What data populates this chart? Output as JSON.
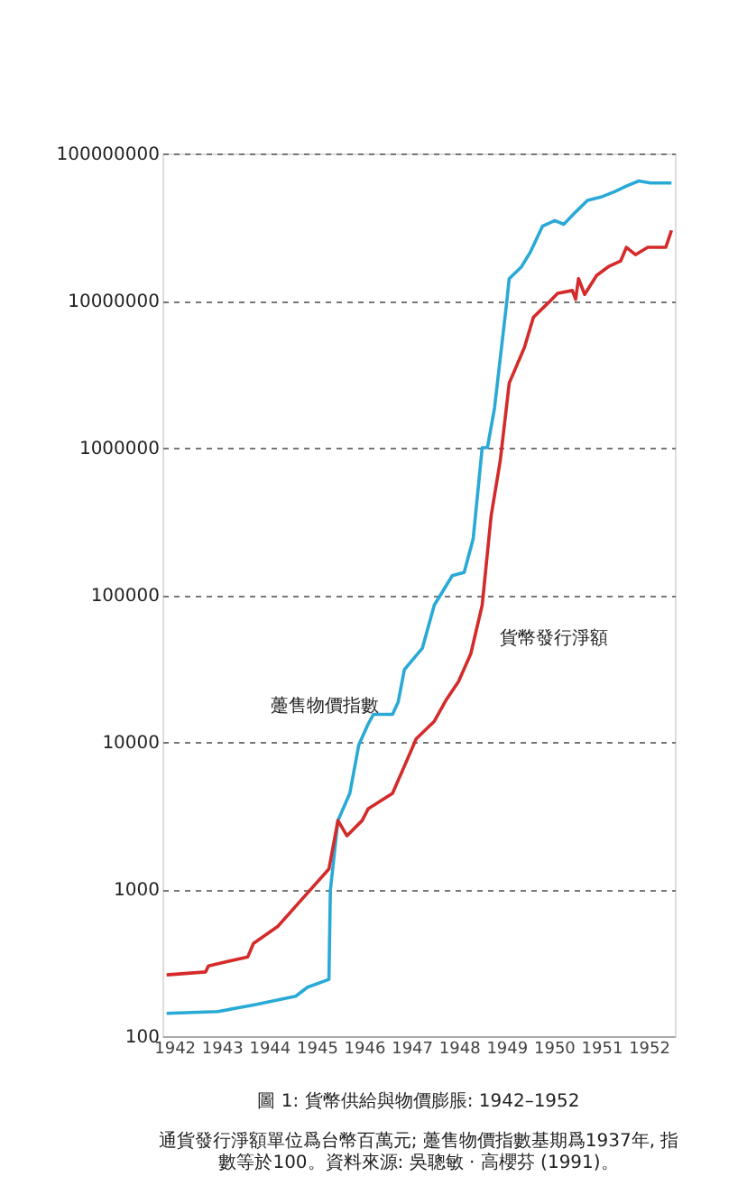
{
  "chart_data": {
    "type": "line",
    "title": "圖 1: 貨幣供給與物價膨脹: 1942–1952",
    "annotations": [
      "通貨發行淨額單位爲台幣百萬元; 躉售物價指數基期爲1937年, 指數等於100。資料來源: 吳聰敏 · 高櫻芬 (1991)。"
    ],
    "log": "y",
    "grid": "y",
    "legend": false,
    "line_style": "solid",
    "marker": "none",
    "xlim": [
      1941.75,
      1952.55
    ],
    "xticks": [
      1942,
      1943,
      1944,
      1945,
      1946,
      1947,
      1948,
      1949,
      1950,
      1951,
      1952
    ],
    "ylim": [
      100,
      100000000
    ],
    "yticks": [
      100,
      1000,
      10000,
      100000,
      1000000,
      10000000,
      100000000
    ],
    "series": [
      {
        "name": "躉售物價指數",
        "color": "#29a9d6",
        "x": [
          1941.84,
          1942.92,
          1943.67,
          1944.56,
          1944.81,
          1945.26,
          1945.29,
          1945.45,
          1945.7,
          1945.89,
          1946.09,
          1946.2,
          1946.6,
          1946.72,
          1946.85,
          1947.23,
          1947.48,
          1947.86,
          1948.11,
          1948.3,
          1948.49,
          1948.6,
          1948.75,
          1949.0,
          1949.06,
          1949.32,
          1949.51,
          1949.76,
          1950.02,
          1950.21,
          1950.46,
          1950.71,
          1951.03,
          1951.28,
          1951.53,
          1951.79,
          1952.04,
          1952.48
        ],
        "values": [
          143,
          147,
          163,
          187,
          215,
          243,
          980,
          2920,
          4470,
          9550,
          13300,
          15400,
          15400,
          18700,
          31000,
          43400,
          85000,
          135000,
          142000,
          240000,
          1000000,
          1000000,
          1860000,
          9300000,
          14100000,
          17000000,
          21500000,
          32000000,
          35000000,
          33000000,
          40000000,
          48000000,
          51000000,
          55000000,
          60000000,
          65000000,
          63000000,
          63000000
        ]
      },
      {
        "name": "貨幣發行淨額",
        "color": "#d42a2a",
        "x": [
          1941.84,
          1942.66,
          1942.72,
          1943.55,
          1943.67,
          1944.18,
          1944.69,
          1945.26,
          1945.45,
          1945.64,
          1945.96,
          1946.09,
          1946.6,
          1946.85,
          1947.1,
          1947.48,
          1947.74,
          1947.99,
          1948.25,
          1948.49,
          1948.68,
          1948.87,
          1949.06,
          1949.38,
          1949.57,
          1949.89,
          1950.08,
          1950.39,
          1950.46,
          1950.52,
          1950.65,
          1950.9,
          1951.15,
          1951.41,
          1951.53,
          1951.72,
          1951.98,
          1952.36,
          1952.48
        ],
        "values": [
          261,
          273,
          300,
          346,
          427,
          556,
          852,
          1370,
          2920,
          2300,
          2920,
          3520,
          4470,
          6840,
          10500,
          13800,
          19500,
          25700,
          39800,
          85000,
          347000,
          813000,
          2750000,
          4800000,
          7700000,
          9700000,
          11200000,
          11700000,
          10200000,
          14100000,
          11000000,
          14800000,
          17000000,
          18600000,
          23000000,
          20500000,
          23000000,
          23000000,
          30000000
        ]
      }
    ]
  }
}
